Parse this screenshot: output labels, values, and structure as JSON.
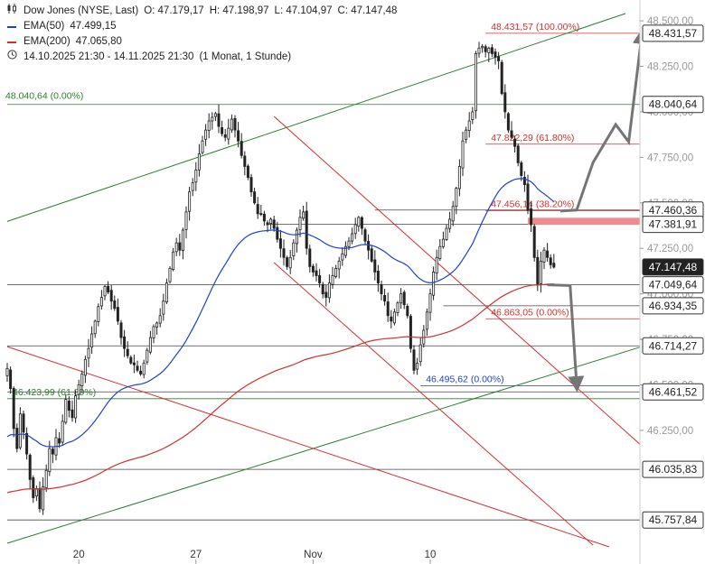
{
  "header": {
    "symbol": "Dow Jones (NYSE, Last)",
    "open": "O: 47.179,17",
    "high": "H: 47.198,97",
    "low": "L: 47.104,97",
    "close": "C: 47.147,48",
    "ema50_label": "EMA(50)",
    "ema50_value": "47.499,15",
    "ema200_label": "EMA(200)",
    "ema200_value": "47.065,80",
    "range": "14.10.2025 21:30 - 14.11.2025 21:30",
    "interval": "(1 Monat, 1 Stunde)"
  },
  "chart_data": {
    "type": "candlestick",
    "interval": "1 Stunde",
    "ylim": [
      45620,
      48540
    ],
    "grid": false,
    "x_ticks": [
      {
        "label": "20",
        "bar": 22
      },
      {
        "label": "27",
        "bar": 58
      },
      {
        "label": "Nov",
        "bar": 94
      },
      {
        "label": "10",
        "bar": 130
      }
    ],
    "y_ticks": [
      "48.500,00",
      "48.250,00",
      "48.000,00",
      "47.750,00",
      "47.500,00",
      "47.250,00",
      "47.000,00",
      "46.750,00",
      "46.500,00",
      "46.250,00"
    ],
    "y_tick_values": [
      48500,
      48250,
      48000,
      47750,
      47500,
      47250,
      47000,
      46750,
      46500,
      46250
    ],
    "price_labels": [
      {
        "label": "48.431,57",
        "value": 48431.57,
        "style": "white"
      },
      {
        "label": "48.040,64",
        "value": 48040.64,
        "style": "white"
      },
      {
        "label": "47.460,36",
        "value": 47460.36,
        "style": "white"
      },
      {
        "label": "47.381,91",
        "value": 47381.91,
        "style": "white"
      },
      {
        "label": "47.147,48",
        "value": 47147.48,
        "style": "dark"
      },
      {
        "label": "47.049,64",
        "value": 47049.64,
        "style": "white"
      },
      {
        "label": "46.934,35",
        "value": 46934.35,
        "style": "white"
      },
      {
        "label": "46.714,27",
        "value": 46714.27,
        "style": "white"
      },
      {
        "label": "46.461,52",
        "value": 46461.52,
        "style": "white"
      },
      {
        "label": "46.035,83",
        "value": 46035.83,
        "style": "white"
      },
      {
        "label": "45.757,84",
        "value": 45757.84,
        "style": "white"
      }
    ],
    "horizontal_lines": [
      {
        "value": 48040.64,
        "color": "#2e7d32",
        "from_bar": 0,
        "text": "48.040,64 (0.00%)"
      },
      {
        "value": 47460.36,
        "color": "#444444",
        "from_bar": 113
      },
      {
        "value": 47381.91,
        "color": "#444444",
        "from_bar": 80
      },
      {
        "value": 47049.64,
        "color": "#444444",
        "from_bar": 0
      },
      {
        "value": 46934.35,
        "color": "#444444",
        "from_bar": 134
      },
      {
        "value": 46714.27,
        "color": "#444444",
        "from_bar": 0
      },
      {
        "value": 46461.52,
        "color": "#444444",
        "from_bar": 0
      },
      {
        "value": 46035.83,
        "color": "#444444",
        "from_bar": 0
      },
      {
        "value": 45757.84,
        "color": "#444444",
        "from_bar": 0
      }
    ],
    "fibonacci": [
      {
        "text": "48.431,57 (100.00%)",
        "value": 48431.57,
        "color": "#d32f2f",
        "from_bar": 147
      },
      {
        "text": "47.822,29 (61.80%)",
        "value": 47822.29,
        "color": "#d32f2f",
        "from_bar": 147
      },
      {
        "text": "47.456,14 (38.20%)",
        "value": 47456.14,
        "color": "#d32f2f",
        "from_bar": 147
      },
      {
        "text": "46.863,05 (0.00%)",
        "value": 46863.05,
        "color": "#d32f2f",
        "from_bar": 147
      },
      {
        "text": "46.495,62 (0.00%)",
        "value": 46495.62,
        "color": "#1e40d0",
        "from_bar": 127
      },
      {
        "text": "46.423,99 (61.80%)",
        "value": 46423.99,
        "color": "#2e7d32",
        "from_bar": 0
      }
    ],
    "trend_lines": [
      {
        "color": "#2e7d32",
        "points": [
          [
            0,
            47398
          ],
          [
            190,
            48540
          ]
        ]
      },
      {
        "color": "#2e7d32",
        "points": [
          [
            0,
            45630
          ],
          [
            195,
            46710
          ]
        ]
      },
      {
        "color": "#d32f2f",
        "points": [
          [
            0,
            46710
          ],
          [
            185,
            45610
          ]
        ]
      },
      {
        "color": "#d32f2f",
        "points": [
          [
            82,
            47975
          ],
          [
            195,
            46165
          ]
        ]
      },
      {
        "color": "#d32f2f",
        "points": [
          [
            82,
            47172
          ],
          [
            180,
            45620
          ]
        ]
      }
    ],
    "resistance_zone": {
      "from": 47380,
      "to": 47418,
      "from_bar": 160,
      "color": "#f28b8b"
    },
    "projection_arrows": [
      {
        "color": "#757575",
        "points": [
          [
            170,
            47455
          ],
          [
            175,
            47460
          ],
          [
            180,
            47720
          ],
          [
            187,
            47930
          ],
          [
            191,
            47835
          ],
          [
            195,
            48420
          ]
        ]
      },
      {
        "color": "#757575",
        "points": [
          [
            166,
            47050
          ],
          [
            173,
            47046
          ],
          [
            175,
            46500
          ]
        ]
      }
    ],
    "series": [
      {
        "name": "Dow Jones",
        "kind": "ohlc",
        "seed": 7,
        "closes": [
          46590,
          46480,
          46260,
          46150,
          46340,
          46240,
          46120,
          45980,
          45880,
          45930,
          45820,
          45940,
          46030,
          46150,
          46120,
          46210,
          46180,
          46300,
          46420,
          46360,
          46320,
          46440,
          46500,
          46560,
          46640,
          46700,
          46780,
          46850,
          46930,
          46980,
          47040,
          47010,
          46960,
          46920,
          46850,
          46760,
          46700,
          46660,
          46620,
          46610,
          46580,
          46560,
          46620,
          46690,
          46760,
          46820,
          46840,
          46880,
          46960,
          47060,
          47140,
          47230,
          47280,
          47240,
          47350,
          47450,
          47560,
          47610,
          47680,
          47770,
          47840,
          47900,
          47950,
          47970,
          47990,
          47920,
          47880,
          47860,
          47910,
          47960,
          47900,
          47840,
          47760,
          47700,
          47640,
          47560,
          47500,
          47440,
          47440,
          47400,
          47380,
          47410,
          47360,
          47300,
          47250,
          47200,
          47150,
          47200,
          47280,
          47350,
          47420,
          47450,
          47250,
          47150,
          47120,
          47100,
          47060,
          47000,
          46980,
          47060,
          47100,
          47140,
          47180,
          47220,
          47260,
          47290,
          47330,
          47380,
          47420,
          47360,
          47290,
          47240,
          47180,
          47120,
          47060,
          47000,
          46960,
          46880,
          46850,
          46900,
          46950,
          47000,
          46940,
          46880,
          46700,
          46580,
          46620,
          46720,
          46800,
          46900,
          47000,
          47120,
          47200,
          47260,
          47300,
          47360,
          47410,
          47480,
          47580,
          47700,
          47840,
          47900,
          47950,
          48000,
          48320,
          48350,
          48360,
          48330,
          48350,
          48320,
          48300,
          48280,
          48100,
          48000,
          47900,
          47860,
          47810,
          47720,
          47650,
          47600,
          47460,
          47380,
          47200,
          47050,
          47180,
          47240,
          47200,
          47160,
          47147
        ]
      },
      {
        "name": "EMA(50)",
        "color": "#1e40d0"
      },
      {
        "name": "EMA(200)",
        "color": "#d32f2f"
      }
    ]
  }
}
